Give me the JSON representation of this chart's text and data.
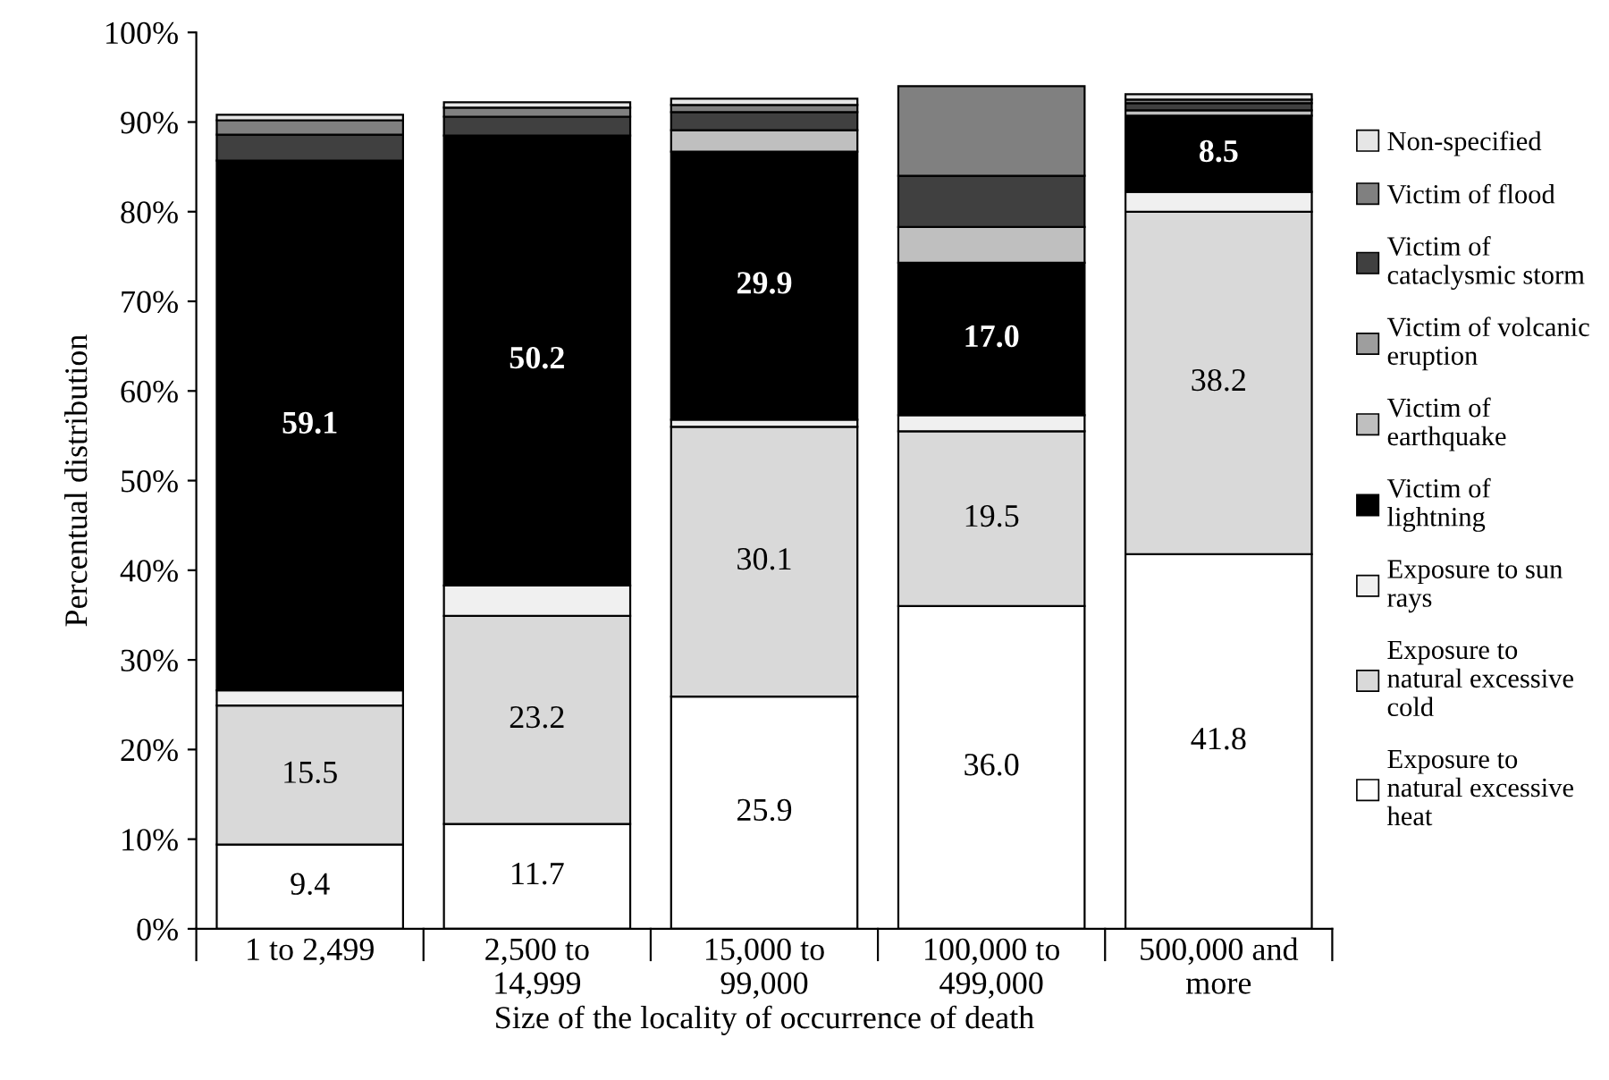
{
  "chart_data": {
    "type": "bar",
    "stacked": true,
    "xlabel": "Size of the locality of occurrence of death",
    "ylabel": "Percentual distribution",
    "categories": [
      "1 to 2,499",
      "2,500 to 14,999",
      "15,000 to 99,000",
      "100,000 to 499,000",
      "500,000 and more"
    ],
    "ylim": [
      0,
      100
    ],
    "yticks": [
      {
        "value": 0,
        "label": "0%"
      },
      {
        "value": 10,
        "label": "10%"
      },
      {
        "value": 20,
        "label": "20%"
      },
      {
        "value": 30,
        "label": "30%"
      },
      {
        "value": 40,
        "label": "40%"
      },
      {
        "value": 50,
        "label": "50%"
      },
      {
        "value": 60,
        "label": "60%"
      },
      {
        "value": 70,
        "label": "70%"
      },
      {
        "value": 80,
        "label": "80%"
      },
      {
        "value": 90,
        "label": "90%"
      },
      {
        "value": 100,
        "label": "100%"
      }
    ],
    "grid": false,
    "legend": "right",
    "series": [
      {
        "name": "Exposure to natural excessive heat",
        "color": "#ffffff",
        "values": [
          9.4,
          11.7,
          25.9,
          36.0,
          41.8
        ],
        "value_labels": [
          "9.4",
          "11.7",
          "25.9",
          "36.0",
          "41.8"
        ]
      },
      {
        "name": "Exposure to natural excessive cold",
        "color": "#d9d9d9",
        "values": [
          15.5,
          23.2,
          30.1,
          19.5,
          38.2
        ],
        "value_labels": [
          "15.5",
          "23.2",
          "30.1",
          "19.5",
          "38.2"
        ]
      },
      {
        "name": "Exposure to sun rays",
        "color": "#f0f0f0",
        "values": [
          1.7,
          3.4,
          0.8,
          1.8,
          2.2
        ]
      },
      {
        "name": "Victim of lightning",
        "color": "#000000",
        "values": [
          59.1,
          50.2,
          29.9,
          17.0,
          8.5
        ],
        "value_labels": [
          "59.1",
          "50.2",
          "29.9",
          "17.0",
          "8.5"
        ]
      },
      {
        "name": "Victim of earthquake",
        "color": "#bfbfbf",
        "values": [
          0,
          0,
          2.4,
          4.0,
          0.6
        ]
      },
      {
        "name": "Victim of volcanic eruption",
        "color": "#9e9e9e",
        "values": [
          0,
          0,
          0,
          0,
          0
        ]
      },
      {
        "name": "Victim of cataclysmic storm",
        "color": "#404040",
        "values": [
          2.9,
          2.1,
          2.0,
          5.7,
          0.8
        ]
      },
      {
        "name": "Victim of flood",
        "color": "#808080",
        "values": [
          1.6,
          1.0,
          0.8,
          10.0,
          0.4
        ]
      },
      {
        "name": "Non-specified",
        "color": "#e6e6e6",
        "values": [
          0.6,
          0.6,
          0.7,
          null,
          0.6
        ]
      }
    ]
  }
}
